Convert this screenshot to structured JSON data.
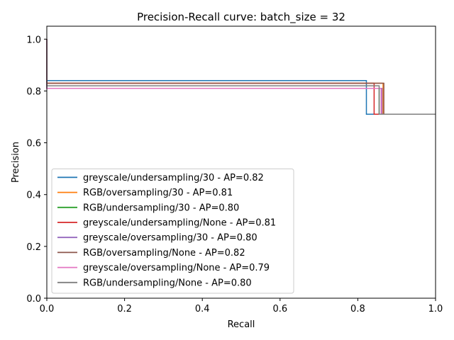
{
  "chart_data": {
    "type": "line",
    "title": "Precision-Recall curve: batch_size = 32",
    "xlabel": "Recall",
    "ylabel": "Precision",
    "xlim": [
      0.0,
      1.0
    ],
    "ylim": [
      0.0,
      1.05
    ],
    "xticks": [
      "0.0",
      "0.2",
      "0.4",
      "0.6",
      "0.8",
      "1.0"
    ],
    "yticks": [
      "0.0",
      "0.2",
      "0.4",
      "0.6",
      "0.8",
      "1.0"
    ],
    "grid": false,
    "legend_position": "lower-left",
    "series": [
      {
        "name": "greyscale/undersampling/30 - AP=0.82",
        "color": "#1f77b4",
        "x": [
          0.0,
          0.0,
          0.822,
          0.822,
          1.0
        ],
        "y": [
          1.0,
          0.84,
          0.84,
          0.71,
          0.71
        ]
      },
      {
        "name": "RGB/oversampling/30 - AP=0.81",
        "color": "#ff7f0e",
        "x": [
          0.0,
          0.0,
          0.865,
          0.865,
          1.0
        ],
        "y": [
          1.0,
          0.83,
          0.83,
          0.71,
          0.71
        ]
      },
      {
        "name": "RGB/undersampling/30 - AP=0.80",
        "color": "#2ca02c",
        "x": [
          0.0,
          0.0,
          0.855,
          0.855,
          1.0
        ],
        "y": [
          1.0,
          0.81,
          0.81,
          0.71,
          0.71
        ]
      },
      {
        "name": "greyscale/undersampling/None - AP=0.81",
        "color": "#d62728",
        "x": [
          0.0,
          0.0,
          0.842,
          0.842,
          1.0
        ],
        "y": [
          1.0,
          0.83,
          0.83,
          0.71,
          0.71
        ]
      },
      {
        "name": "greyscale/oversampling/30 - AP=0.80",
        "color": "#9467bd",
        "x": [
          0.0,
          0.0,
          0.862,
          0.862,
          1.0
        ],
        "y": [
          1.0,
          0.81,
          0.81,
          0.71,
          0.71
        ]
      },
      {
        "name": "RGB/oversampling/None - AP=0.82",
        "color": "#8c564b",
        "x": [
          0.0,
          0.0,
          0.867,
          0.867,
          1.0
        ],
        "y": [
          1.0,
          0.83,
          0.83,
          0.71,
          0.71
        ]
      },
      {
        "name": "greyscale/oversampling/None - AP=0.79",
        "color": "#e377c2",
        "x": [
          0.0,
          0.0,
          0.86,
          0.86,
          1.0
        ],
        "y": [
          1.0,
          0.81,
          0.81,
          0.71,
          0.71
        ]
      },
      {
        "name": "RGB/undersampling/None - AP=0.80",
        "color": "#7f7f7f",
        "x": [
          0.0,
          0.0,
          0.855,
          0.855,
          1.0
        ],
        "y": [
          1.0,
          0.82,
          0.82,
          0.71,
          0.71
        ]
      }
    ]
  }
}
